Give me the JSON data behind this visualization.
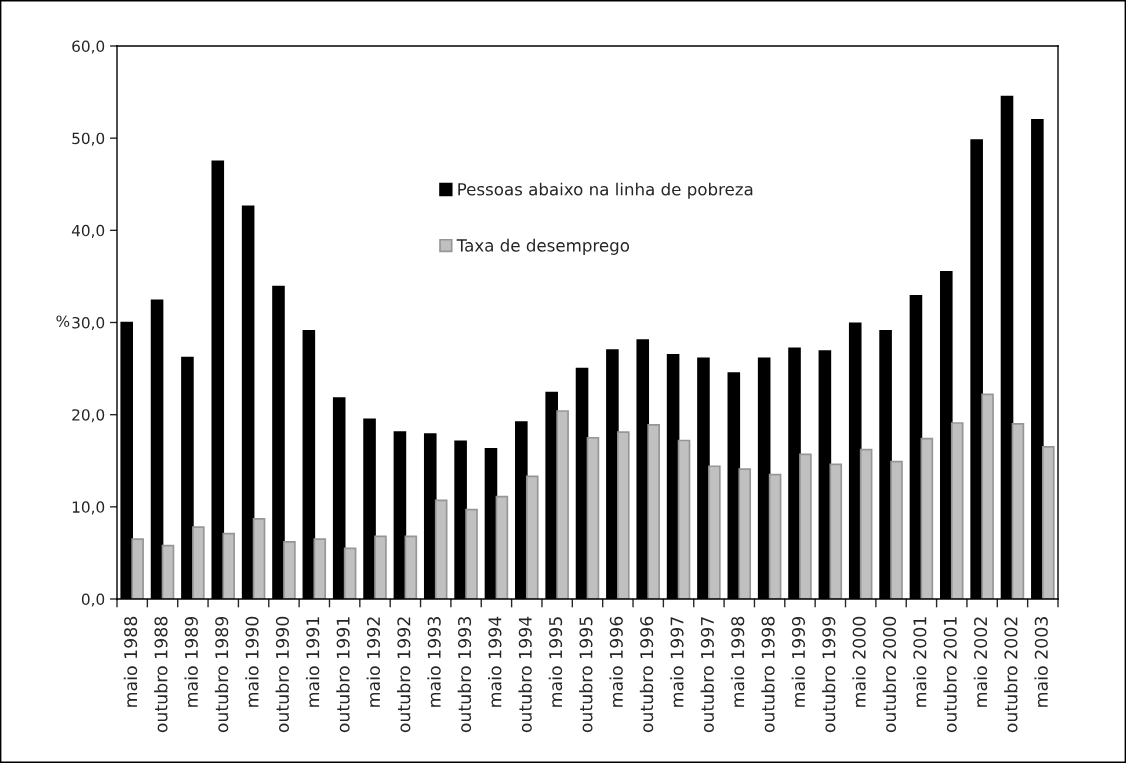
{
  "chart_data": {
    "type": "bar",
    "ylabel": "%",
    "categories": [
      "maio 1988",
      "outubro 1988",
      "maio 1989",
      "outubro 1989",
      "maio 1990",
      "outubro 1990",
      "maio 1991",
      "outubro 1991",
      "maio 1992",
      "outubro 1992",
      "maio 1993",
      "outubro 1993",
      "maio 1994",
      "outubro 1994",
      "maio 1995",
      "outubro 1995",
      "maio 1996",
      "outubro 1996",
      "maio 1997",
      "outubro 1997",
      "maio 1998",
      "outubro 1998",
      "maio 1999",
      "outubro 1999",
      "maio 2000",
      "outubro 2000",
      "maio 2001",
      "outubro 2001",
      "maio 2002",
      "outubro 2002",
      "maio 2003"
    ],
    "series": [
      {
        "name": "Pessoas abaixo na linha de pobreza",
        "color": "#000000",
        "values": [
          30.0,
          32.4,
          26.2,
          47.5,
          42.6,
          33.9,
          29.1,
          21.8,
          19.5,
          18.1,
          17.9,
          17.1,
          16.3,
          19.2,
          22.4,
          25.0,
          27.0,
          28.1,
          26.5,
          26.1,
          24.5,
          26.1,
          27.2,
          26.9,
          29.9,
          29.1,
          32.9,
          35.5,
          49.8,
          54.5,
          52.0
        ]
      },
      {
        "name": "Taxa de desemprego",
        "color": "#c0c0c0",
        "values": [
          6.5,
          5.8,
          7.8,
          7.1,
          8.7,
          6.2,
          6.5,
          5.5,
          6.8,
          6.8,
          10.7,
          9.7,
          11.1,
          13.3,
          20.4,
          17.5,
          18.1,
          18.9,
          17.2,
          14.4,
          14.1,
          13.5,
          15.7,
          14.6,
          16.2,
          14.9,
          17.4,
          19.1,
          22.2,
          19.0,
          16.5
        ]
      }
    ],
    "ylim": [
      0,
      60
    ],
    "yticks": [
      {
        "value": 0,
        "label": "0,0"
      },
      {
        "value": 10,
        "label": "10,0"
      },
      {
        "value": 20,
        "label": "20,0"
      },
      {
        "value": 30,
        "label": "30,0"
      },
      {
        "value": 40,
        "label": "40,0"
      },
      {
        "value": 50,
        "label": "50,0"
      },
      {
        "value": 60,
        "label": "60,0"
      }
    ],
    "legend": "top"
  }
}
